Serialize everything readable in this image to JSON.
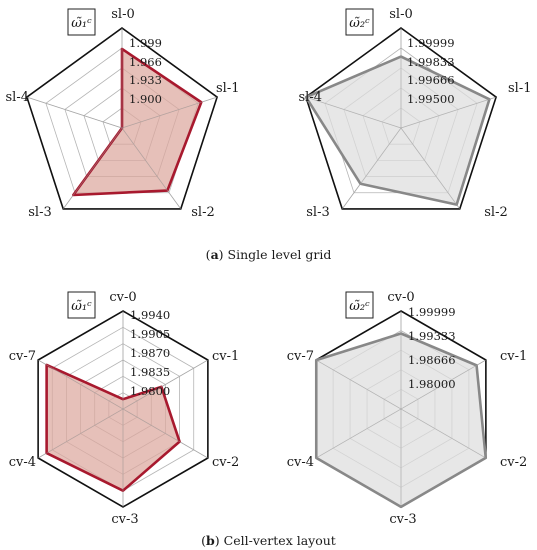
{
  "captions": {
    "a": {
      "letter": "a",
      "text": "Single level grid"
    },
    "b": {
      "letter": "b",
      "text": "Cell-vertex layout"
    }
  },
  "colors": {
    "fill_red": "#dda89e",
    "stroke_red": "#a8192e",
    "fill_gray": "#dedede",
    "stroke_gray": "#888888",
    "grid": "#b5b5b5",
    "outer": "#111111"
  },
  "chart_data": [
    {
      "type": "radar",
      "id": "a-left",
      "legend_label": "ω̃₁ᶜ",
      "axes": [
        "sl-0",
        "sl-1",
        "sl-2",
        "sl-3",
        "sl-4"
      ],
      "tick_labels": [
        "1.900",
        "1.933",
        "1.966",
        "1.999"
      ],
      "ticks": [
        1.9,
        1.933,
        1.966,
        1.999
      ],
      "range": [
        1.834,
        2.032
      ],
      "series": [
        {
          "values": [
            1.9905,
            1.999,
            1.987,
            1.998,
            1.815
          ]
        }
      ],
      "color": "red"
    },
    {
      "type": "radar",
      "id": "a-right",
      "legend_label": "ω̃₂ᶜ",
      "axes": [
        "sl-0",
        "sl-1",
        "sl-2",
        "sl-3",
        "sl-4"
      ],
      "tick_labels": [
        "1.99500",
        "1.99666",
        "1.99833",
        "1.99999"
      ],
      "ticks": [
        1.995,
        1.99666,
        1.99833,
        1.99999
      ],
      "range": [
        1.99167,
        2.00332
      ],
      "series": [
        {
          "values": [
            1.99999,
            2.0025,
            2.0027,
            1.9997,
            2.0033
          ]
        }
      ],
      "color": "gray"
    },
    {
      "type": "radar",
      "id": "b-left",
      "legend_label": "ω̃₁ᶜ",
      "axes": [
        "cv-0",
        "cv-1",
        "cv-2",
        "cv-7",
        "cv-3",
        "cv-4"
      ],
      "tick_labels": [
        "1.9800",
        "1.9835",
        "1.9870",
        "1.9905",
        "1.9940"
      ],
      "ticks": [
        1.98,
        1.9835,
        1.987,
        1.9905,
        1.994
      ],
      "range": [
        1.9765,
        1.9975
      ],
      "series": [
        {
          "values": [
            1.9786,
            1.986,
            1.9905,
            1.9954,
            1.994,
            1.9954
          ]
        }
      ],
      "color": "red"
    },
    {
      "type": "radar",
      "id": "b-right",
      "legend_label": "ω̃₂ᶜ",
      "axes": [
        "cv-0",
        "cv-1",
        "cv-2",
        "cv-7",
        "cv-3",
        "cv-4"
      ],
      "tick_labels": [
        "1.98000",
        "1.98666",
        "1.99333",
        "1.99999"
      ],
      "ticks": [
        1.98,
        1.98666,
        1.99333,
        1.99999
      ],
      "range": [
        1.97333,
        2.00665
      ],
      "series": [
        {
          "values": [
            1.999,
            2.003,
            2.0066,
            2.0066,
            2.0066,
            2.0066
          ]
        }
      ],
      "color": "gray"
    }
  ]
}
